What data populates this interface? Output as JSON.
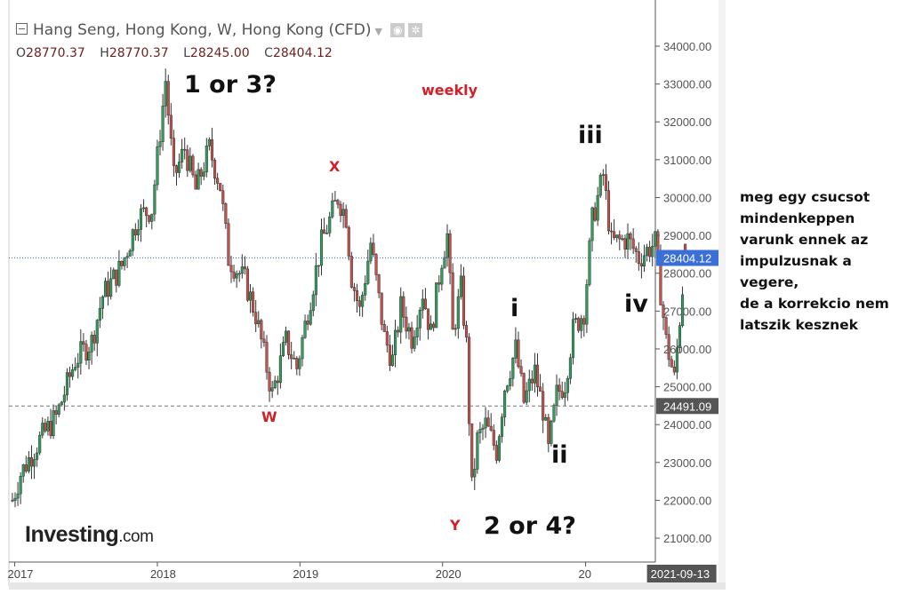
{
  "header": {
    "title": "Hang Seng, Hong Kong, W, Hong Kong (CFD)",
    "ohlc": {
      "o_label": "O",
      "o": "28770.37",
      "h_label": "H",
      "h": "28770.37",
      "l_label": "L",
      "l": "28245.00",
      "c_label": "C",
      "c": "28404.12"
    },
    "icons": [
      "collapse-icon",
      "dropdown-caret-icon",
      "eye-icon",
      "gear-icon"
    ]
  },
  "side_note": {
    "lines": [
      "meg egy csucsot",
      "mindenkeppen",
      "varunk ennek az",
      "impulzusnak a vegere,",
      "de a korrekcio nem",
      "latszik kesznek"
    ]
  },
  "logo": {
    "main": "Investing",
    "suffix": ".com"
  },
  "annotations": {
    "wave_1_or_3": "1 or 3?",
    "weekly": "weekly",
    "x": "X",
    "w": "W",
    "y": "Y",
    "wave_2_or_4": "2 or 4?",
    "i": "i",
    "ii": "ii",
    "iii": "iii",
    "iv": "iv"
  },
  "chart_data": {
    "type": "candlestick",
    "interval": "weekly",
    "ylim": [
      20500,
      34800
    ],
    "y_ticks": [
      "34000.00",
      "33000.00",
      "32000.00",
      "31000.00",
      "30000.00",
      "29000.00",
      "28000.00",
      "27000.00",
      "26000.00",
      "25000.00",
      "24000.00",
      "23000.00",
      "22000.00",
      "21000.00"
    ],
    "x_ticks": [
      "2017",
      "2018",
      "2019",
      "2020",
      "20"
    ],
    "last_price": "28404.12",
    "last_date": "2021-09-13",
    "horizontal_line": "24491.09",
    "colors": {
      "up": "#2f9e5b",
      "down": "#c9504a",
      "last_price_tag": "#3a6fd8",
      "line_tag": "#555555"
    },
    "approx_close_path": [
      [
        "2016-12-26",
        22000
      ],
      [
        "2017-01-16",
        22700
      ],
      [
        "2017-03-06",
        23600
      ],
      [
        "2017-04-17",
        24200
      ],
      [
        "2017-06-05",
        25700
      ],
      [
        "2017-07-17",
        26200
      ],
      [
        "2017-08-14",
        27400
      ],
      [
        "2017-10-02",
        28200
      ],
      [
        "2017-11-13",
        29500
      ],
      [
        "2017-12-18",
        29700
      ],
      [
        "2018-01-22",
        33100
      ],
      [
        "2018-02-12",
        30500
      ],
      [
        "2018-03-12",
        31300
      ],
      [
        "2018-04-09",
        30200
      ],
      [
        "2018-05-14",
        31300
      ],
      [
        "2018-06-11",
        30300
      ],
      [
        "2018-07-02",
        28400
      ],
      [
        "2018-08-13",
        27800
      ],
      [
        "2018-09-10",
        26900
      ],
      [
        "2018-10-22",
        24800
      ],
      [
        "2018-11-26",
        26200
      ],
      [
        "2018-12-24",
        25500
      ],
      [
        "2019-01-21",
        27000
      ],
      [
        "2019-02-25",
        28800
      ],
      [
        "2019-04-08",
        30000
      ],
      [
        "2019-04-29",
        29500
      ],
      [
        "2019-05-13",
        27900
      ],
      [
        "2019-06-03",
        27000
      ],
      [
        "2019-07-01",
        28800
      ],
      [
        "2019-08-05",
        26300
      ],
      [
        "2019-08-26",
        25700
      ],
      [
        "2019-09-16",
        27100
      ],
      [
        "2019-10-14",
        26300
      ],
      [
        "2019-11-11",
        27500
      ],
      [
        "2019-12-02",
        26400
      ],
      [
        "2019-12-30",
        28400
      ],
      [
        "2020-01-13",
        29000
      ],
      [
        "2020-01-27",
        26400
      ],
      [
        "2020-02-17",
        27600
      ],
      [
        "2020-03-02",
        26100
      ],
      [
        "2020-03-16",
        22300
      ],
      [
        "2020-03-30",
        23600
      ],
      [
        "2020-04-20",
        24000
      ],
      [
        "2020-05-18",
        23300
      ],
      [
        "2020-06-08",
        25000
      ],
      [
        "2020-07-06",
        26000
      ],
      [
        "2020-07-27",
        24600
      ],
      [
        "2020-08-24",
        25400
      ],
      [
        "2020-09-14",
        24400
      ],
      [
        "2020-09-28",
        23300
      ],
      [
        "2020-10-19",
        24800
      ],
      [
        "2020-11-09",
        25100
      ],
      [
        "2020-11-30",
        26500
      ],
      [
        "2020-12-28",
        27000
      ],
      [
        "2021-01-18",
        29400
      ],
      [
        "2021-02-15",
        30600
      ],
      [
        "2021-03-08",
        28800
      ],
      [
        "2021-04-19",
        28900
      ],
      [
        "2021-05-17",
        28400
      ],
      [
        "2021-06-28",
        28800
      ],
      [
        "2021-07-26",
        26200
      ],
      [
        "2021-08-16",
        25200
      ],
      [
        "2021-09-13",
        28404.12
      ]
    ]
  }
}
